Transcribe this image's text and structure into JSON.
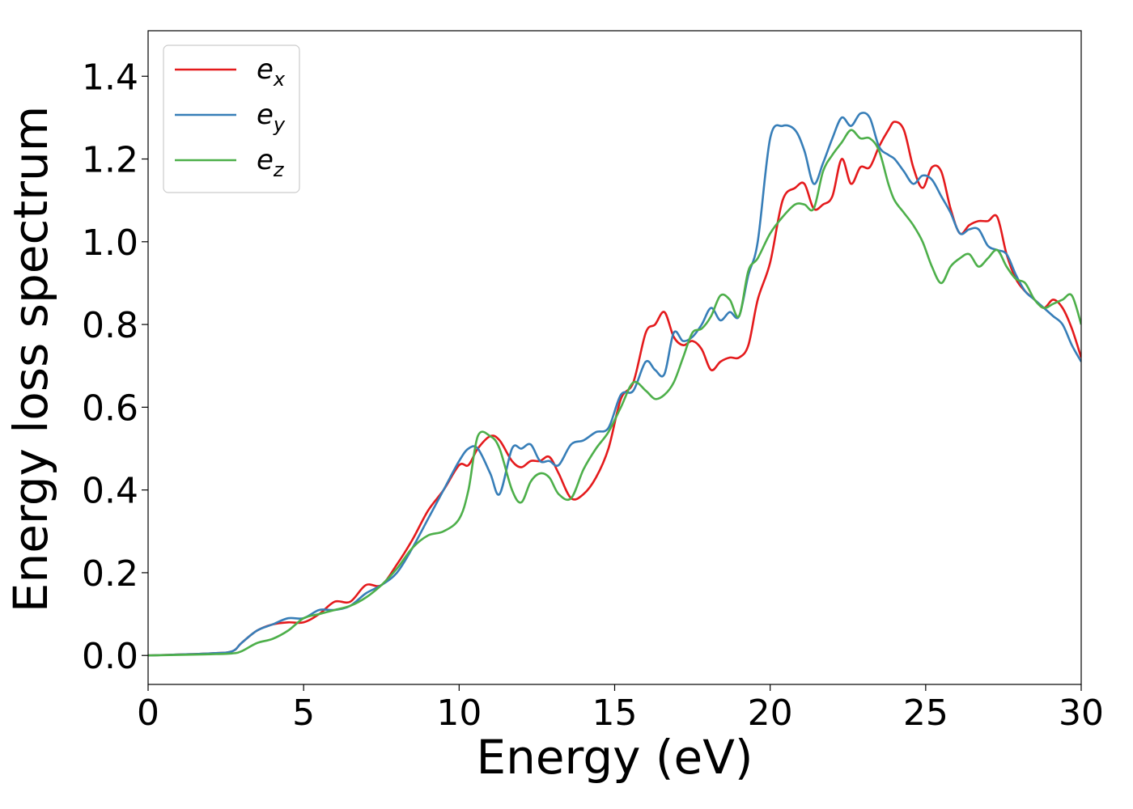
{
  "chart_data": {
    "type": "line",
    "xlabel": "Energy (eV)",
    "ylabel": "Energy loss spectrum",
    "xlim": [
      0,
      30
    ],
    "ylim": [
      -0.07,
      1.51
    ],
    "xticks": [
      "0",
      "5",
      "10",
      "15",
      "20",
      "25",
      "30"
    ],
    "yticks": [
      "0.0",
      "0.2",
      "0.4",
      "0.6",
      "0.8",
      "1.0",
      "1.2",
      "1.4"
    ],
    "grid": false,
    "legend_position": "top-left",
    "series": [
      {
        "name": "e_x",
        "name_base": "e",
        "name_sub": "x",
        "color": "#e41a1c",
        "x": [
          0,
          2,
          2.7,
          3,
          3.5,
          4,
          4.5,
          5,
          5.5,
          6,
          6.5,
          7,
          7.5,
          8,
          8.5,
          9,
          9.5,
          10,
          10.3,
          10.6,
          11,
          11.3,
          11.7,
          12,
          12.3,
          12.6,
          12.9,
          13.2,
          13.6,
          14,
          14.4,
          14.8,
          15.2,
          15.6,
          16,
          16.3,
          16.6,
          16.9,
          17.2,
          17.5,
          17.8,
          18.1,
          18.4,
          18.7,
          19,
          19.3,
          19.6,
          20,
          20.4,
          20.8,
          21.1,
          21.4,
          21.7,
          22,
          22.3,
          22.6,
          22.9,
          23.2,
          23.5,
          23.8,
          24,
          24.3,
          24.6,
          24.9,
          25.2,
          25.5,
          25.8,
          26.1,
          26.4,
          26.7,
          27,
          27.3,
          27.6,
          27.9,
          28.2,
          28.5,
          28.8,
          29.1,
          29.4,
          29.7,
          30
        ],
        "y": [
          0,
          0.005,
          0.01,
          0.03,
          0.06,
          0.075,
          0.08,
          0.08,
          0.1,
          0.13,
          0.13,
          0.17,
          0.17,
          0.22,
          0.28,
          0.35,
          0.4,
          0.46,
          0.46,
          0.5,
          0.53,
          0.52,
          0.47,
          0.455,
          0.47,
          0.47,
          0.48,
          0.44,
          0.38,
          0.39,
          0.43,
          0.5,
          0.62,
          0.66,
          0.78,
          0.8,
          0.83,
          0.77,
          0.75,
          0.76,
          0.74,
          0.69,
          0.71,
          0.72,
          0.72,
          0.75,
          0.86,
          0.95,
          1.1,
          1.13,
          1.14,
          1.08,
          1.09,
          1.11,
          1.2,
          1.14,
          1.18,
          1.18,
          1.23,
          1.27,
          1.29,
          1.27,
          1.18,
          1.13,
          1.18,
          1.17,
          1.08,
          1.02,
          1.04,
          1.05,
          1.05,
          1.06,
          0.97,
          0.91,
          0.88,
          0.86,
          0.84,
          0.86,
          0.84,
          0.79,
          0.72
        ]
      },
      {
        "name": "e_y",
        "name_base": "e",
        "name_sub": "y",
        "color": "#377eb8",
        "x": [
          0,
          2,
          2.7,
          3,
          3.5,
          4,
          4.5,
          5,
          5.5,
          6,
          6.5,
          7,
          7.5,
          8,
          8.5,
          9,
          9.5,
          10,
          10.3,
          10.6,
          11,
          11.3,
          11.7,
          12,
          12.3,
          12.6,
          12.9,
          13.2,
          13.6,
          14,
          14.4,
          14.8,
          15.2,
          15.6,
          16,
          16.3,
          16.6,
          16.9,
          17.2,
          17.5,
          17.8,
          18.1,
          18.4,
          18.7,
          19,
          19.3,
          19.6,
          20,
          20.4,
          20.8,
          21.1,
          21.4,
          21.7,
          22,
          22.3,
          22.6,
          22.9,
          23.2,
          23.5,
          23.8,
          24,
          24.3,
          24.6,
          24.9,
          25.2,
          25.5,
          25.8,
          26.1,
          26.4,
          26.7,
          27,
          27.3,
          27.6,
          27.9,
          28.2,
          28.5,
          28.8,
          29.1,
          29.4,
          29.7,
          30
        ],
        "y": [
          0,
          0.005,
          0.01,
          0.03,
          0.06,
          0.075,
          0.09,
          0.09,
          0.11,
          0.11,
          0.12,
          0.15,
          0.17,
          0.2,
          0.26,
          0.33,
          0.4,
          0.47,
          0.5,
          0.5,
          0.44,
          0.39,
          0.5,
          0.5,
          0.51,
          0.47,
          0.47,
          0.46,
          0.51,
          0.52,
          0.54,
          0.55,
          0.63,
          0.64,
          0.71,
          0.69,
          0.68,
          0.78,
          0.76,
          0.77,
          0.8,
          0.84,
          0.81,
          0.83,
          0.82,
          0.92,
          1.0,
          1.25,
          1.28,
          1.27,
          1.22,
          1.14,
          1.19,
          1.25,
          1.3,
          1.28,
          1.31,
          1.3,
          1.23,
          1.21,
          1.2,
          1.17,
          1.14,
          1.16,
          1.15,
          1.11,
          1.07,
          1.02,
          1.03,
          1.03,
          0.99,
          0.98,
          0.97,
          0.92,
          0.88,
          0.86,
          0.84,
          0.82,
          0.8,
          0.75,
          0.71
        ]
      },
      {
        "name": "e_z",
        "name_base": "e",
        "name_sub": "z",
        "color": "#4daf4a",
        "x": [
          0,
          2,
          2.7,
          3,
          3.5,
          4,
          4.5,
          5,
          5.5,
          6,
          6.5,
          7,
          7.5,
          8,
          8.5,
          9,
          9.5,
          10,
          10.3,
          10.6,
          11,
          11.3,
          11.7,
          12,
          12.3,
          12.6,
          12.9,
          13.2,
          13.6,
          14,
          14.4,
          14.8,
          15.2,
          15.6,
          16,
          16.3,
          16.6,
          16.9,
          17.2,
          17.5,
          17.8,
          18.1,
          18.4,
          18.7,
          19,
          19.3,
          19.6,
          20,
          20.4,
          20.8,
          21.1,
          21.4,
          21.7,
          22,
          22.3,
          22.6,
          22.9,
          23.2,
          23.5,
          23.8,
          24,
          24.3,
          24.6,
          24.9,
          25.2,
          25.5,
          25.8,
          26.1,
          26.4,
          26.7,
          27,
          27.3,
          27.6,
          27.9,
          28.2,
          28.5,
          28.8,
          29.1,
          29.4,
          29.7,
          30
        ],
        "y": [
          0,
          0.003,
          0.005,
          0.01,
          0.03,
          0.04,
          0.06,
          0.09,
          0.1,
          0.11,
          0.12,
          0.14,
          0.17,
          0.21,
          0.26,
          0.29,
          0.3,
          0.33,
          0.4,
          0.53,
          0.53,
          0.5,
          0.4,
          0.37,
          0.42,
          0.44,
          0.43,
          0.39,
          0.38,
          0.45,
          0.5,
          0.54,
          0.6,
          0.66,
          0.64,
          0.62,
          0.63,
          0.66,
          0.72,
          0.78,
          0.79,
          0.82,
          0.87,
          0.86,
          0.82,
          0.93,
          0.96,
          1.02,
          1.06,
          1.09,
          1.09,
          1.08,
          1.17,
          1.21,
          1.24,
          1.27,
          1.25,
          1.25,
          1.22,
          1.14,
          1.1,
          1.07,
          1.04,
          1.0,
          0.94,
          0.9,
          0.94,
          0.96,
          0.97,
          0.94,
          0.96,
          0.98,
          0.94,
          0.91,
          0.9,
          0.86,
          0.84,
          0.85,
          0.86,
          0.87,
          0.8
        ]
      }
    ]
  }
}
